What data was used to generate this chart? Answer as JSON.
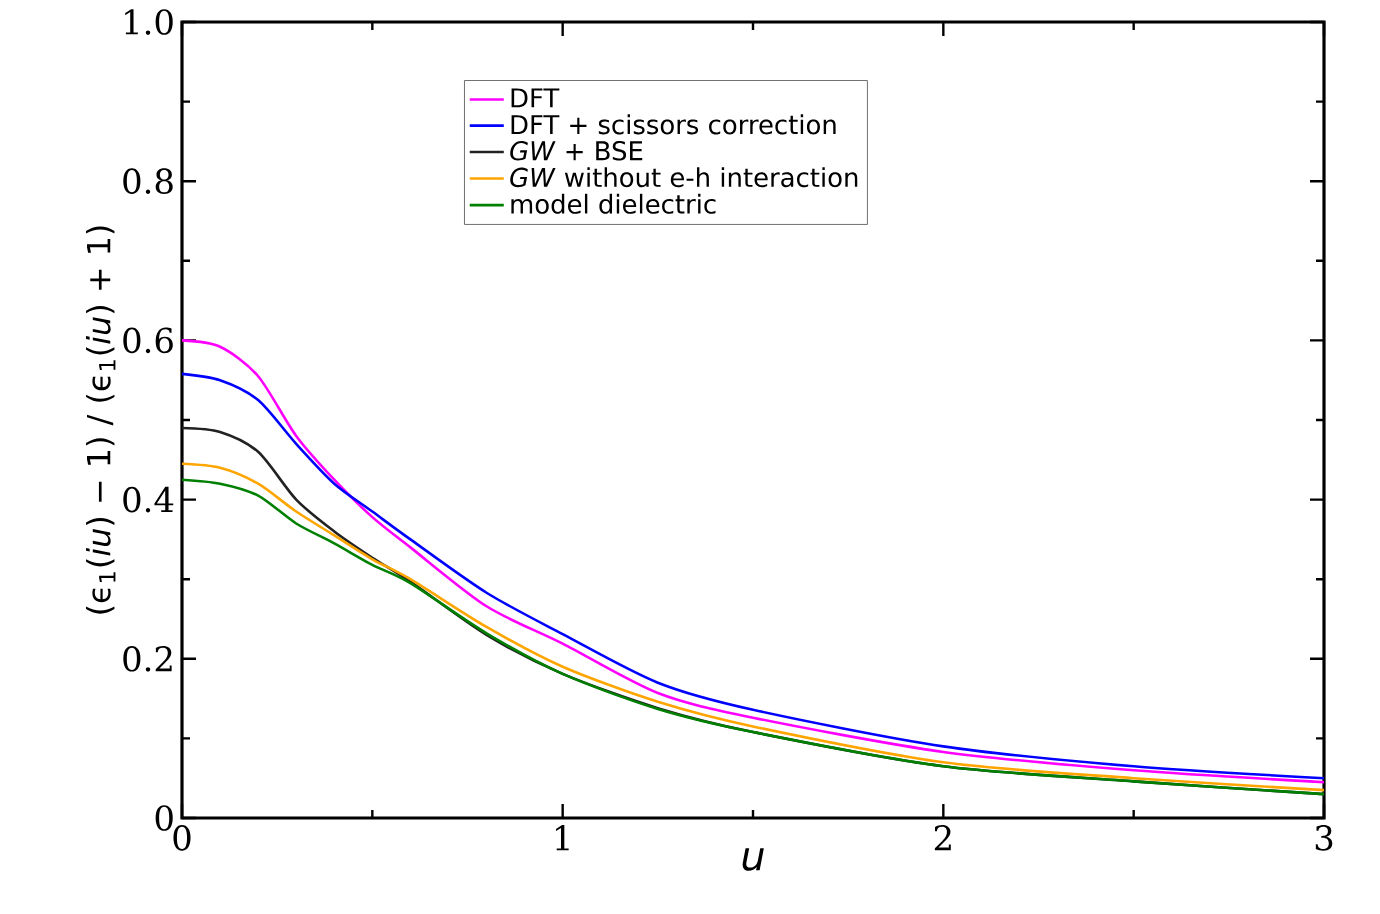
{
  "chart_data": {
    "type": "line",
    "xlabel": "u",
    "ylabel": "(ϵ$_{1}$(*iu*) − 1) / (ϵ$_{1}$(*iu*) + 1)",
    "xlim": [
      0,
      3
    ],
    "ylim": [
      0,
      1
    ],
    "xticks": [
      0,
      1,
      2,
      3
    ],
    "yticks": [
      0,
      0.2,
      0.4,
      0.6,
      0.8,
      {
        "value": 1,
        "label": "1.0"
      }
    ],
    "legend": "top",
    "grid": false,
    "marker": "none",
    "line_style": "solid",
    "x": [
      0,
      0.1,
      0.2,
      0.3,
      0.4,
      0.5,
      0.6,
      0.8,
      1,
      1.25,
      1.5,
      2,
      2.5,
      3
    ],
    "series": [
      {
        "name": "DFT",
        "color": "#ff00ff",
        "values": [
          0.6,
          0.592,
          0.555,
          0.48,
          0.425,
          0.378,
          0.34,
          0.266,
          0.219,
          0.157,
          0.126,
          0.083,
          0.06,
          0.045
        ]
      },
      {
        "name": "DFT + scissors correction",
        "color": "#0000ff",
        "values": [
          0.558,
          0.55,
          0.525,
          0.47,
          0.42,
          0.385,
          0.35,
          0.283,
          0.231,
          0.17,
          0.136,
          0.09,
          0.065,
          0.05
        ]
      },
      {
        "name": "*GW* + BSE",
        "color": "#222222",
        "values": [
          0.49,
          0.485,
          0.46,
          0.4,
          0.36,
          0.327,
          0.297,
          0.23,
          0.181,
          0.138,
          0.108,
          0.065,
          0.046,
          0.03
        ]
      },
      {
        "name": "*GW* without e-h interaction",
        "color": "#ffa500",
        "values": [
          0.445,
          0.44,
          0.42,
          0.385,
          0.355,
          0.325,
          0.3,
          0.24,
          0.19,
          0.146,
          0.115,
          0.07,
          0.05,
          0.035
        ]
      },
      {
        "name": "model dielectric",
        "color": "#008000",
        "values": [
          0.425,
          0.42,
          0.405,
          0.37,
          0.345,
          0.318,
          0.295,
          0.232,
          0.181,
          0.137,
          0.108,
          0.065,
          0.046,
          0.03
        ]
      }
    ]
  }
}
